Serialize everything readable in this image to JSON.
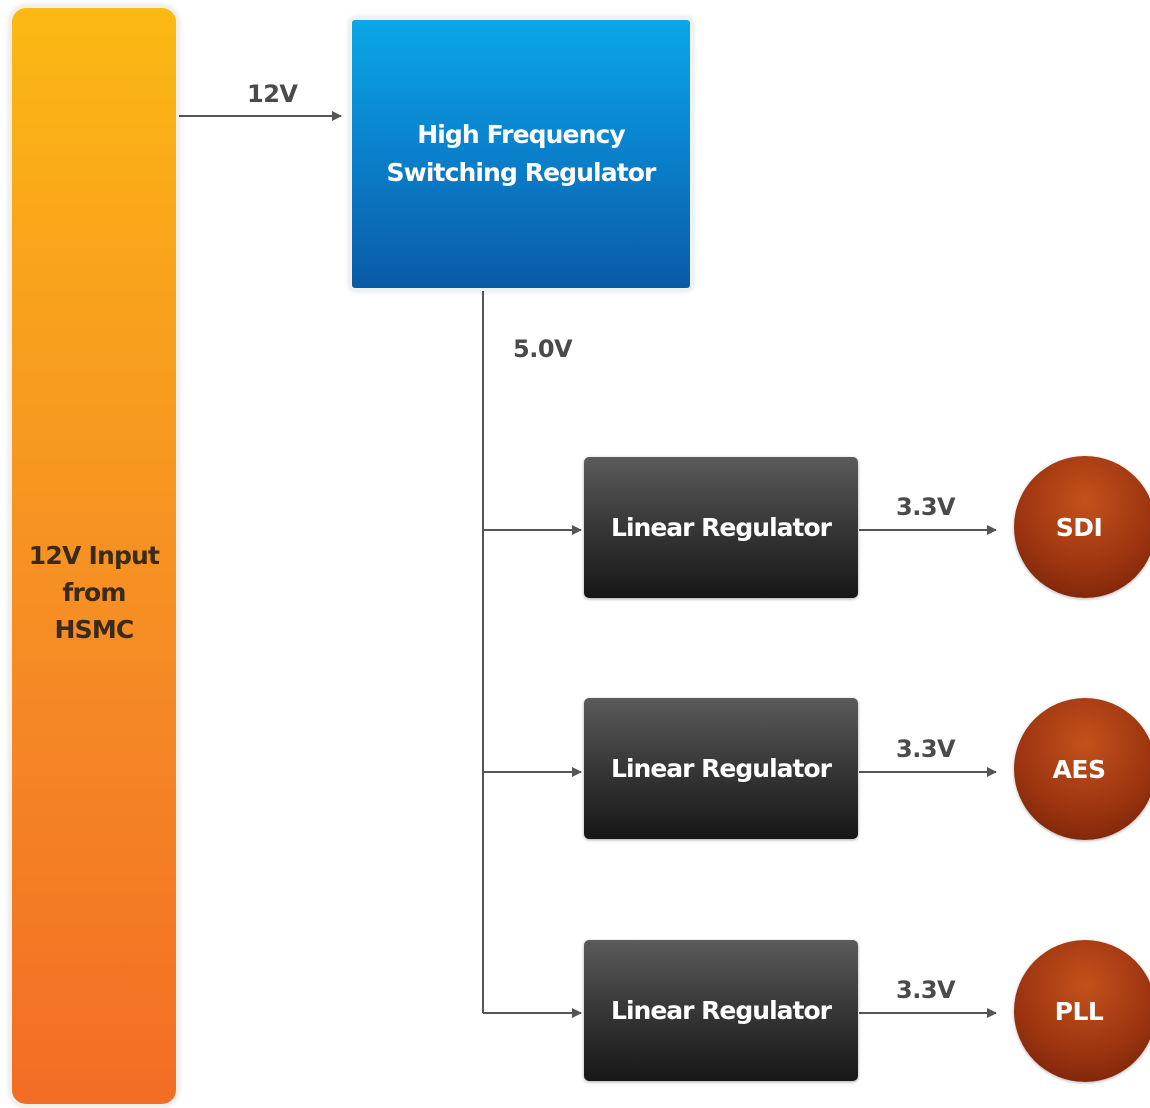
{
  "input_block": {
    "lines": [
      "12V Input",
      "from",
      "HSMC"
    ],
    "color_top": "#fbb913",
    "color_bottom": "#f36d25"
  },
  "switching_regulator": {
    "lines": [
      "High Frequency",
      "Switching Regulator"
    ],
    "color_top": "#0aa7e6",
    "color_bottom": "#0a5aa6"
  },
  "rails": {
    "input_voltage": "12V",
    "bus_voltage": "5.0V"
  },
  "branches": [
    {
      "regulator": "Linear Regulator",
      "voltage": "3.3V",
      "load": "SDI"
    },
    {
      "regulator": "Linear Regulator",
      "voltage": "3.3V",
      "load": "AES"
    },
    {
      "regulator": "Linear Regulator",
      "voltage": "3.3V",
      "load": "PLL"
    }
  ],
  "colors": {
    "wire": "#555555",
    "linear_regulator": "#2a2a2a",
    "load": "#9e3510"
  }
}
